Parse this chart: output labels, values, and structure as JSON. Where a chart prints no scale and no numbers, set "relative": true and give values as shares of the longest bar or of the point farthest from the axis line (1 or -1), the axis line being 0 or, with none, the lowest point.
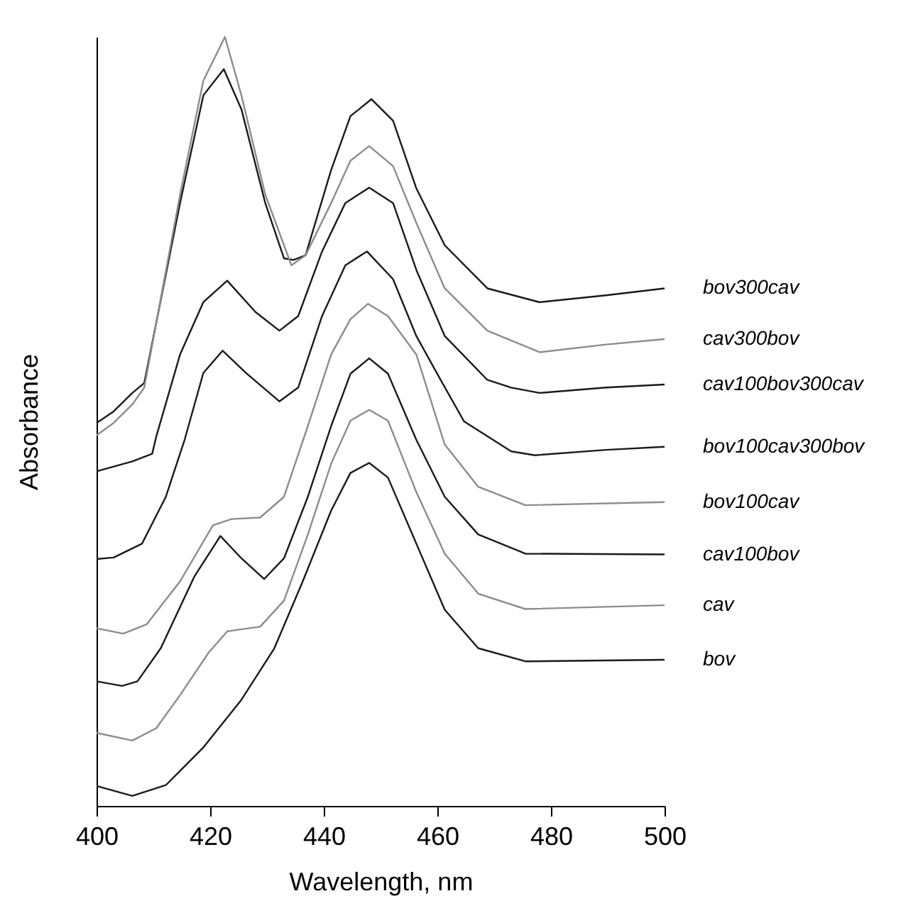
{
  "chart_data": {
    "type": "line",
    "xlabel": "Wavelength, nm",
    "ylabel": "Absorbance",
    "relative": true,
    "xlim": [
      400,
      500
    ],
    "xticks": [
      400,
      420,
      440,
      460,
      480,
      500
    ],
    "series": [
      {
        "name": "bov300cav",
        "color": "#1a1a1a",
        "x": [
          400,
          403,
          406.3,
          408.4,
          414.7,
          418.8,
          422.4,
          425.5,
          429.7,
          433,
          434.7,
          436.8,
          441.3,
          444.7,
          448.4,
          452.2,
          456.3,
          461.3,
          468.8,
          478,
          489.7,
          500
        ],
        "values": [
          0.498,
          0.513,
          0.537,
          0.55,
          0.784,
          0.924,
          0.958,
          0.906,
          0.784,
          0.712,
          0.71,
          0.716,
          0.827,
          0.897,
          0.919,
          0.891,
          0.803,
          0.729,
          0.673,
          0.655,
          0.664,
          0.673
        ]
      },
      {
        "name": "cav300bov",
        "color": "#8c8c8c",
        "x": [
          400,
          403,
          406.3,
          408.4,
          414.7,
          418.8,
          422.6,
          425.5,
          429.7,
          434.3,
          436.8,
          441.3,
          444.7,
          448,
          452.2,
          456.3,
          461.3,
          468.8,
          478,
          489.7,
          500
        ],
        "values": [
          0.482,
          0.498,
          0.522,
          0.544,
          0.795,
          0.943,
          1,
          0.924,
          0.795,
          0.703,
          0.716,
          0.784,
          0.839,
          0.858,
          0.832,
          0.758,
          0.673,
          0.618,
          0.59,
          0.6,
          0.607
        ]
      },
      {
        "name": "cav100bov300cav",
        "color": "#1a1a1a",
        "x": [
          400,
          406.3,
          409.8,
          410.5,
          414.7,
          418.8,
          423,
          428,
          432.2,
          435.5,
          439.7,
          443.8,
          448,
          452.2,
          456.3,
          461.3,
          468.8,
          473,
          478,
          489.7,
          500
        ],
        "values": [
          0.435,
          0.448,
          0.458,
          0.48,
          0.587,
          0.655,
          0.683,
          0.642,
          0.618,
          0.637,
          0.721,
          0.784,
          0.804,
          0.784,
          0.697,
          0.611,
          0.554,
          0.544,
          0.537,
          0.544,
          0.548
        ]
      },
      {
        "name": "bov100cav300bov",
        "color": "#1a1a1a",
        "x": [
          400,
          403,
          408,
          412.2,
          415.5,
          418.8,
          422.2,
          426.3,
          432.2,
          435.5,
          439.7,
          443.8,
          447.6,
          452.2,
          456.3,
          460.5,
          464.7,
          473,
          477.2,
          489.7,
          500
        ],
        "values": [
          0.321,
          0.323,
          0.341,
          0.402,
          0.476,
          0.563,
          0.592,
          0.563,
          0.526,
          0.544,
          0.637,
          0.703,
          0.721,
          0.685,
          0.611,
          0.555,
          0.5,
          0.461,
          0.456,
          0.463,
          0.467
        ]
      },
      {
        "name": "bov100cav",
        "color": "#8c8c8c",
        "x": [
          400,
          404.7,
          408.8,
          414.7,
          420.5,
          423.8,
          428.8,
          433,
          437.2,
          441.3,
          444.7,
          447.8,
          451.3,
          456.3,
          461.3,
          467.2,
          475.5,
          500
        ],
        "values": [
          0.231,
          0.224,
          0.236,
          0.292,
          0.365,
          0.373,
          0.375,
          0.402,
          0.494,
          0.587,
          0.633,
          0.653,
          0.637,
          0.587,
          0.47,
          0.415,
          0.391,
          0.395
        ]
      },
      {
        "name": "cav100bov",
        "color": "#1a1a1a",
        "x": [
          400,
          404.5,
          407.2,
          411.3,
          417.2,
          421.8,
          425.5,
          429.5,
          433,
          437.2,
          441.3,
          444.7,
          448,
          451.3,
          456.3,
          461.3,
          467.2,
          475.5,
          500
        ],
        "values": [
          0.162,
          0.156,
          0.162,
          0.205,
          0.298,
          0.351,
          0.322,
          0.295,
          0.322,
          0.402,
          0.494,
          0.562,
          0.582,
          0.562,
          0.476,
          0.402,
          0.353,
          0.328,
          0.327
        ]
      },
      {
        "name": "cav",
        "color": "#8c8c8c",
        "x": [
          400,
          406.3,
          410.5,
          414.7,
          419.7,
          423,
          428.8,
          433,
          437.2,
          441.3,
          444.7,
          448,
          451.3,
          456.3,
          461.3,
          467.2,
          475.5,
          500
        ],
        "values": [
          0.095,
          0.085,
          0.101,
          0.144,
          0.199,
          0.227,
          0.233,
          0.267,
          0.353,
          0.445,
          0.501,
          0.515,
          0.501,
          0.408,
          0.328,
          0.276,
          0.256,
          0.261
        ]
      },
      {
        "name": "bov",
        "color": "#1a1a1a",
        "x": [
          400,
          406.3,
          412.2,
          418.8,
          425.5,
          431.3,
          436.3,
          441.3,
          444.7,
          448,
          451.3,
          456.3,
          461.3,
          467.2,
          475.5,
          500
        ],
        "values": [
          0.026,
          0.013,
          0.027,
          0.076,
          0.138,
          0.205,
          0.292,
          0.384,
          0.433,
          0.446,
          0.427,
          0.341,
          0.255,
          0.205,
          0.188,
          0.19
        ]
      }
    ]
  }
}
